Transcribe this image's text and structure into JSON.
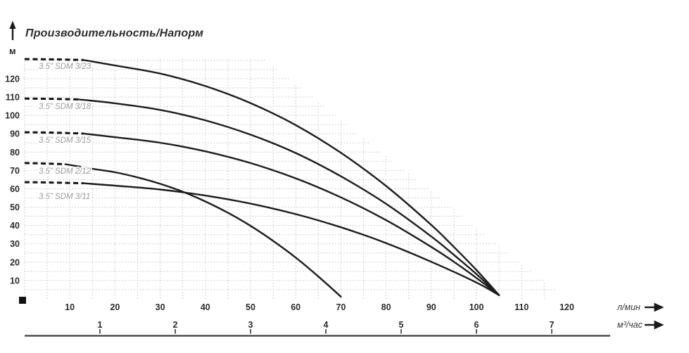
{
  "title": "Производительность/Напорм",
  "y_axis": {
    "unit": "м",
    "ticks": [
      10,
      20,
      30,
      40,
      50,
      60,
      70,
      80,
      90,
      100,
      110,
      120
    ]
  },
  "x_axis_primary": {
    "unit": "л/мин",
    "ticks": [
      10,
      20,
      30,
      40,
      50,
      60,
      70,
      80,
      90,
      100,
      110,
      120
    ]
  },
  "x_axis_secondary": {
    "unit": "м³/час",
    "ticks": [
      1,
      2,
      3,
      4,
      5,
      6,
      7
    ]
  },
  "chart_data": {
    "type": "line",
    "title": "Производительность/Напорм",
    "xlabel": "л/мин",
    "x2label": "м³/час",
    "ylabel": "м",
    "xlim": [
      0,
      125
    ],
    "ylim": [
      0,
      135
    ],
    "grid": "fine dotted gray grid, 5 л/мин × 5 м cells, clipped by stepped diagonal from (53,131) to (119,2)",
    "legend_position": "labels under left end of each curve",
    "notes": "head–flow curves; dashed flat segment at low flow; four curves converge at ≈(105 л/мин, 2 м); SDM 2/12 ends at ≈(70 л/мин, 1 м)",
    "series": [
      {
        "name": "3.5” SDM 3/23",
        "max_head_m": 130,
        "dash_until": 13,
        "points": [
          [
            0,
            130.7
          ],
          [
            7,
            130.5
          ],
          [
            13,
            130.2
          ],
          [
            20,
            127.2
          ],
          [
            30,
            122.8
          ],
          [
            40,
            116.0
          ],
          [
            50,
            106.7
          ],
          [
            60,
            94.7
          ],
          [
            70,
            79.6
          ],
          [
            80,
            61.5
          ],
          [
            90,
            40.3
          ],
          [
            95,
            28.3
          ],
          [
            100,
            15.7
          ],
          [
            105,
            2
          ]
        ]
      },
      {
        "name": "3.5” SDM 3/18",
        "max_head_m": 109,
        "dash_until": 12,
        "points": [
          [
            0,
            109.2
          ],
          [
            6,
            109.0
          ],
          [
            12,
            108.7
          ],
          [
            20,
            106.6
          ],
          [
            30,
            103.0
          ],
          [
            40,
            97.3
          ],
          [
            50,
            89.5
          ],
          [
            60,
            79.5
          ],
          [
            70,
            66.8
          ],
          [
            80,
            51.8
          ],
          [
            90,
            34.0
          ],
          [
            95,
            24.0
          ],
          [
            100,
            13.5
          ],
          [
            105,
            2
          ]
        ]
      },
      {
        "name": "3.5” SDM 3/15",
        "max_head_m": 90,
        "dash_until": 13,
        "points": [
          [
            0,
            90.8
          ],
          [
            6,
            90.6
          ],
          [
            13,
            90.1
          ],
          [
            20,
            88.1
          ],
          [
            30,
            85.1
          ],
          [
            40,
            80.4
          ],
          [
            50,
            74.0
          ],
          [
            60,
            65.7
          ],
          [
            70,
            55.3
          ],
          [
            80,
            42.9
          ],
          [
            90,
            28.3
          ],
          [
            95,
            20.2
          ],
          [
            100,
            11.4
          ],
          [
            105,
            2
          ]
        ]
      },
      {
        "name": "3.5” SDM 2/12",
        "max_head_m": 73,
        "dash_until": 9,
        "points": [
          [
            0,
            74.0
          ],
          [
            4,
            73.8
          ],
          [
            9,
            73.4
          ],
          [
            15,
            70.9
          ],
          [
            20,
            69.0
          ],
          [
            25,
            66.2
          ],
          [
            30,
            62.7
          ],
          [
            35,
            58.4
          ],
          [
            40,
            53.1
          ],
          [
            45,
            46.9
          ],
          [
            50,
            39.8
          ],
          [
            55,
            31.6
          ],
          [
            60,
            22.5
          ],
          [
            65,
            12.2
          ],
          [
            70,
            1.2
          ]
        ]
      },
      {
        "name": "3.5” SDM 3/11",
        "max_head_m": 63,
        "dash_until": 13,
        "points": [
          [
            0,
            63.6
          ],
          [
            6,
            63.4
          ],
          [
            13,
            63.0
          ],
          [
            20,
            61.7
          ],
          [
            30,
            59.6
          ],
          [
            40,
            56.3
          ],
          [
            50,
            51.9
          ],
          [
            60,
            46.2
          ],
          [
            70,
            39.0
          ],
          [
            80,
            30.4
          ],
          [
            90,
            20.2
          ],
          [
            100,
            8.9
          ],
          [
            105,
            2
          ]
        ]
      }
    ]
  },
  "colors": {
    "curve": "#1c1c1c",
    "dash": "#121212",
    "grid": "#c6c6c6",
    "curve_label": "#9b9b9b",
    "axis_text": "#2b2b2b",
    "title_text": "#2e2e2e",
    "axis_line": "#3f3f3f"
  }
}
